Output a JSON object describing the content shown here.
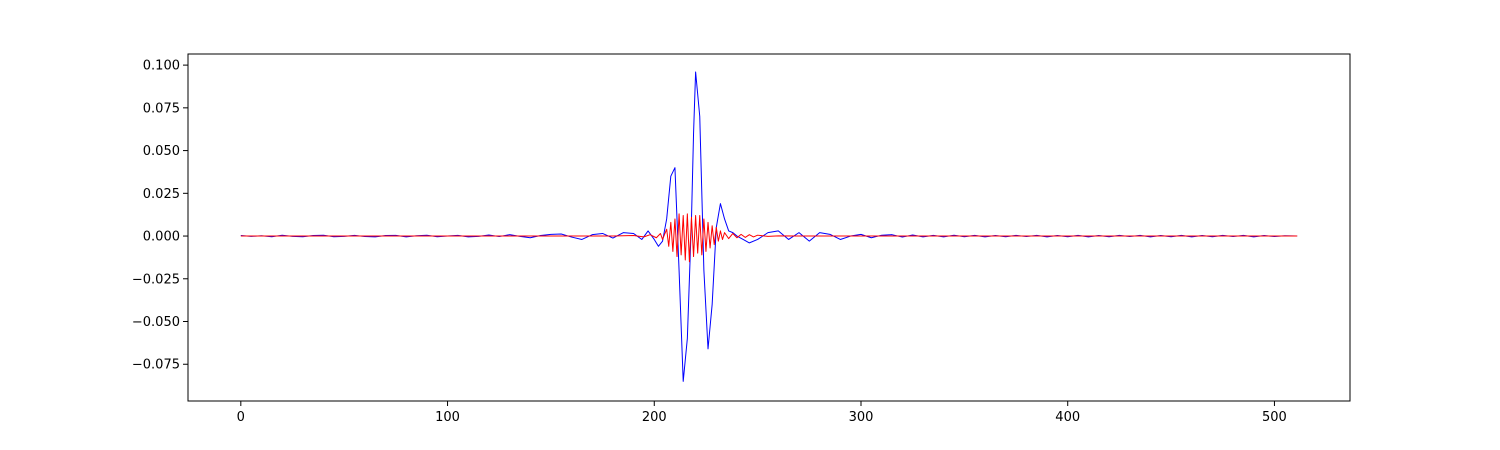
{
  "chart_data": {
    "type": "line",
    "title": "",
    "xlabel": "",
    "ylabel": "",
    "xlim": [
      -25.55,
      536.55
    ],
    "ylim": [
      -0.0965,
      0.1065
    ],
    "grid": false,
    "legend": "none",
    "x_ticks": [
      {
        "value": 0,
        "label": "0"
      },
      {
        "value": 100,
        "label": "100"
      },
      {
        "value": 200,
        "label": "200"
      },
      {
        "value": 300,
        "label": "300"
      },
      {
        "value": 400,
        "label": "400"
      },
      {
        "value": 500,
        "label": "500"
      }
    ],
    "y_ticks": [
      {
        "value": 0.1,
        "label": "0.100"
      },
      {
        "value": 0.075,
        "label": "0.075"
      },
      {
        "value": 0.05,
        "label": "0.050"
      },
      {
        "value": 0.025,
        "label": "0.025"
      },
      {
        "value": 0.0,
        "label": "0.000"
      },
      {
        "value": -0.025,
        "label": "−0.025"
      },
      {
        "value": -0.05,
        "label": "−0.050"
      },
      {
        "value": -0.075,
        "label": "−0.075"
      }
    ],
    "series": [
      {
        "color": "#0000ff",
        "x": [
          0,
          5,
          10,
          15,
          20,
          25,
          30,
          35,
          40,
          45,
          50,
          55,
          60,
          65,
          70,
          75,
          80,
          85,
          90,
          95,
          100,
          105,
          110,
          115,
          120,
          125,
          130,
          135,
          140,
          145,
          150,
          155,
          160,
          165,
          170,
          175,
          180,
          185,
          190,
          194,
          197,
          200,
          202,
          204,
          206,
          208,
          210,
          212,
          214,
          216,
          218,
          219,
          220,
          222,
          224,
          226,
          228,
          230,
          232,
          234,
          236,
          238,
          240,
          243,
          246,
          250,
          255,
          260,
          265,
          270,
          275,
          280,
          285,
          290,
          295,
          300,
          305,
          310,
          315,
          320,
          325,
          330,
          335,
          340,
          345,
          350,
          355,
          360,
          365,
          370,
          375,
          380,
          385,
          390,
          395,
          400,
          405,
          410,
          415,
          420,
          425,
          430,
          435,
          440,
          445,
          450,
          455,
          460,
          465,
          470,
          475,
          480,
          485,
          490,
          495,
          500,
          505,
          511
        ],
        "y": [
          0.0003,
          -0.0002,
          0.0002,
          -0.0004,
          0.0005,
          -0.0002,
          -0.0004,
          0.0003,
          0.0005,
          -0.0004,
          -0.0002,
          0.0004,
          -0.0003,
          -0.0005,
          0.0003,
          0.0004,
          -0.0005,
          0.0002,
          0.0005,
          -0.0004,
          0.0,
          0.0004,
          -0.0005,
          -0.0002,
          0.0006,
          -0.0003,
          0.0008,
          -0.0002,
          -0.001,
          0.0003,
          0.001,
          0.0012,
          -0.0006,
          -0.002,
          0.0008,
          0.0015,
          -0.0012,
          0.002,
          0.0015,
          -0.002,
          0.003,
          -0.002,
          -0.006,
          -0.003,
          0.01,
          0.035,
          0.04,
          -0.02,
          -0.085,
          -0.06,
          0.01,
          0.06,
          0.096,
          0.07,
          -0.02,
          -0.066,
          -0.04,
          0.005,
          0.019,
          0.01,
          0.003,
          0.002,
          0.0,
          -0.002,
          -0.004,
          -0.002,
          0.002,
          0.003,
          -0.002,
          0.002,
          -0.003,
          0.002,
          0.001,
          -0.002,
          0.0,
          0.001,
          -0.001,
          0.0005,
          0.0008,
          -0.0006,
          0.0006,
          -0.0005,
          0.0004,
          -0.0005,
          0.0005,
          -0.0004,
          0.0004,
          -0.0005,
          0.0003,
          -0.0004,
          0.0004,
          -0.0003,
          0.0004,
          -0.0005,
          0.0003,
          -0.0004,
          0.0004,
          -0.0005,
          0.0003,
          -0.0004,
          0.0004,
          -0.0003,
          0.0004,
          -0.0005,
          0.0003,
          -0.0004,
          0.0004,
          -0.0005,
          0.0003,
          -0.0004,
          0.0004,
          -0.0003,
          0.0004,
          -0.0005,
          0.0003,
          -0.0003,
          0.0002,
          0.0
        ]
      },
      {
        "color": "#ff0000",
        "x": [
          0,
          50,
          100,
          150,
          180,
          190,
          195,
          198,
          201,
          203,
          204,
          206,
          207,
          208,
          209,
          210,
          211,
          212,
          213,
          214,
          215,
          216,
          217,
          218,
          219,
          220,
          221,
          222,
          223,
          224,
          225,
          226,
          227,
          228,
          229,
          230,
          231,
          232,
          233,
          234,
          236,
          238,
          240,
          242,
          244,
          246,
          248,
          250,
          255,
          260,
          270,
          300,
          350,
          400,
          450,
          511
        ],
        "y": [
          0.0,
          0.0,
          0.0,
          0.0,
          0.0,
          0.0003,
          -0.0005,
          0.0008,
          -0.001,
          0.0015,
          -0.002,
          0.004,
          -0.006,
          0.008,
          -0.009,
          0.01,
          -0.012,
          0.013,
          -0.011,
          0.012,
          -0.014,
          0.013,
          -0.015,
          0.011,
          -0.012,
          0.012,
          -0.01,
          0.012,
          -0.011,
          0.01,
          -0.009,
          0.008,
          -0.007,
          0.006,
          -0.005,
          0.005,
          -0.003,
          0.003,
          -0.002,
          0.002,
          -0.0015,
          0.0015,
          -0.001,
          0.001,
          -0.0008,
          0.0008,
          -0.0005,
          0.0005,
          -0.0002,
          0.0001,
          0.0,
          0.0,
          0.0,
          0.0,
          0.0,
          0.0
        ]
      }
    ]
  }
}
